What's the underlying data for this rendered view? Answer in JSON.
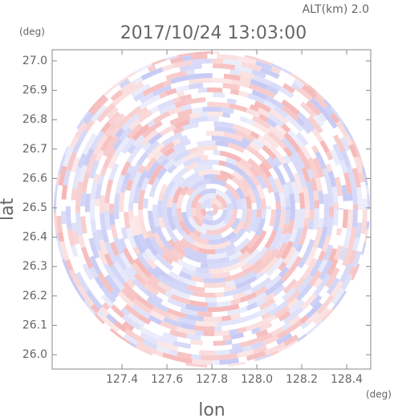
{
  "chart_data": {
    "type": "radar-field",
    "title": "2017/10/24 13:03:00",
    "subtitle": "ALT(km) 2.0",
    "x_label": "lon",
    "y_label": "lat",
    "x_unit": "(deg)",
    "y_unit": "(deg)",
    "xlim": [
      127.089,
      128.507
    ],
    "ylim": [
      25.951,
      27.038
    ],
    "xticks": [
      127.4,
      127.6,
      127.8,
      {
        "value": 128.0,
        "label": "128.0"
      },
      128.2,
      128.4
    ],
    "yticks": [
      {
        "value": 26.0,
        "label": "26.0"
      },
      26.1,
      26.2,
      26.3,
      26.4,
      26.5,
      26.6,
      26.7,
      26.8,
      26.9,
      {
        "value": 27.0,
        "label": "27.0"
      }
    ]
  }
}
